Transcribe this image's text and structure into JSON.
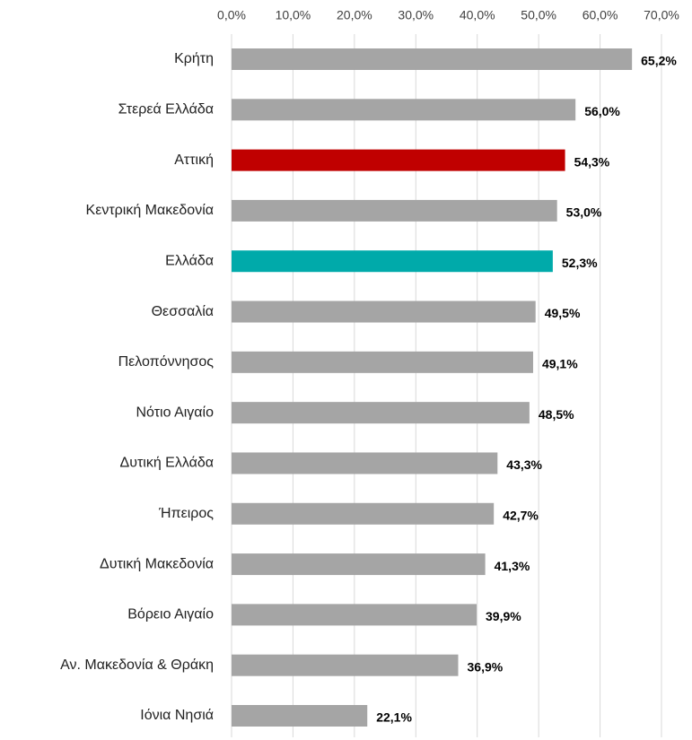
{
  "chart_data": {
    "type": "hbar",
    "categories": [
      "Κρήτη",
      "Στερεά Ελλάδα",
      "Αττική",
      "Κεντρική Μακεδονία",
      "Ελλάδα",
      "Θεσσαλία",
      "Πελοπόννησος",
      "Νότιο Αιγαίο",
      "Δυτική Ελλάδα",
      "Ήπειρος",
      "Δυτική Μακεδονία",
      "Βόρειο Αιγαίο",
      "Αν. Μακεδονία & Θράκη",
      "Ιόνια Νησιά"
    ],
    "values": [
      65.2,
      56.0,
      54.3,
      53.0,
      52.3,
      49.5,
      49.1,
      48.5,
      43.3,
      42.7,
      41.3,
      39.9,
      36.9,
      22.1
    ],
    "value_labels": [
      "65,2%",
      "56,0%",
      "54,3%",
      "53,0%",
      "52,3%",
      "49,5%",
      "49,1%",
      "48,5%",
      "43,3%",
      "42,7%",
      "41,3%",
      "39,9%",
      "36,9%",
      "22,1%"
    ],
    "colors": [
      "#a5a5a5",
      "#a5a5a5",
      "#c00000",
      "#a5a5a5",
      "#00aaaa",
      "#a5a5a5",
      "#a5a5a5",
      "#a5a5a5",
      "#a5a5a5",
      "#a5a5a5",
      "#a5a5a5",
      "#a5a5a5",
      "#a5a5a5",
      "#a5a5a5"
    ],
    "xlim": [
      0,
      70
    ],
    "xticks": [
      {
        "value": 0,
        "label": "0,0%"
      },
      {
        "value": 10,
        "label": "10,0%"
      },
      {
        "value": 20,
        "label": "20,0%"
      },
      {
        "value": 30,
        "label": "30,0%"
      },
      {
        "value": 40,
        "label": "40,0%"
      },
      {
        "value": 50,
        "label": "50,0%"
      },
      {
        "value": 60,
        "label": "60,0%"
      },
      {
        "value": 70,
        "label": "70,0%"
      }
    ],
    "grid": true
  }
}
